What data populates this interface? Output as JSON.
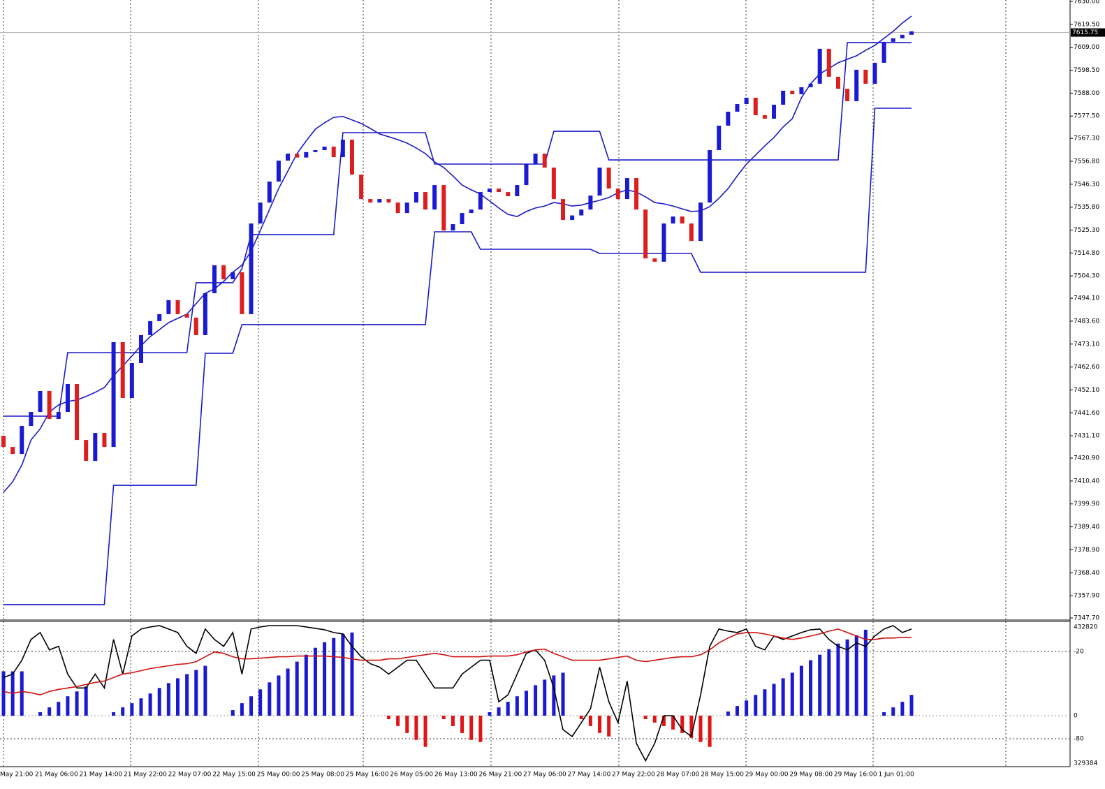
{
  "chart_data": {
    "type": "candlestick",
    "categories": [
      "May 21:00",
      "21 May 06:00",
      "21 May 14:00",
      "21 May 22:00",
      "22 May 07:00",
      "22 May 15:00",
      "25 May 00:00",
      "25 May 08:00",
      "25 May 16:00",
      "26 May 05:00",
      "26 May 13:00",
      "26 May 21:00",
      "27 May 06:00",
      "27 May 14:00",
      "27 May 22:00",
      "28 May 07:00",
      "28 May 15:00",
      "29 May 00:00",
      "29 May 08:00",
      "29 May 16:00",
      "1 Jun 01:00"
    ],
    "open": [
      7431.1,
      7426.0,
      7422.8,
      7435.6,
      7442.0,
      7451.6,
      7438.8,
      7442.0,
      7454.8,
      7429.2,
      7419.6,
      7432.4,
      7426.0,
      7474.0,
      7448.4,
      7464.4,
      7477.2,
      7483.6,
      7486.8,
      7493.2,
      7486.8,
      7485.2,
      7477.2,
      7496.4,
      7509.2,
      7502.8,
      7506.0,
      7486.8,
      7528.3,
      7537.9,
      7547.5,
      7557.1,
      7560.3,
      7558.5,
      7561.0,
      7561.9,
      7563.5,
      7558.7,
      7566.7,
      7550.7,
      7539.5,
      7537.9,
      7539.5,
      7537.9,
      7533.1,
      7537.9,
      7542.7,
      7534.7,
      7545.9,
      7525.1,
      7528.0,
      7533.1,
      7534.7,
      7542.7,
      7544.3,
      7542.7,
      7540.8,
      7545.9,
      7555.5,
      7560.3,
      7553.9,
      7539.5,
      7529.9,
      7532.0,
      7534.7,
      7541.1,
      7553.9,
      7544.3,
      7539.5,
      7549.1,
      7534.7,
      7512.3,
      7510.8,
      7528.3,
      7531.5,
      7528.3,
      7520.3,
      7537.9,
      7561.9,
      7573.1,
      7579.5,
      7583.0,
      7585.9,
      7577.9,
      7576.3,
      7582.7,
      7589.1,
      7587.5,
      7590.7,
      7592.3,
      7608.3,
      7595.5,
      7590.0,
      7584.3,
      7598.7,
      7592.3,
      7601.9,
      7611.5,
      7613.1,
      7614.7
    ],
    "close": [
      7426.0,
      7422.8,
      7435.6,
      7442.0,
      7451.6,
      7438.8,
      7442.0,
      7454.8,
      7429.2,
      7419.6,
      7432.4,
      7426.0,
      7474.0,
      7448.4,
      7464.4,
      7477.2,
      7483.6,
      7486.8,
      7493.2,
      7486.8,
      7485.2,
      7477.2,
      7496.4,
      7509.2,
      7502.8,
      7506.0,
      7486.8,
      7528.3,
      7537.9,
      7547.5,
      7557.1,
      7560.3,
      7558.5,
      7561.0,
      7561.9,
      7563.5,
      7558.7,
      7566.7,
      7550.7,
      7539.5,
      7537.9,
      7539.5,
      7537.9,
      7533.1,
      7537.9,
      7542.7,
      7534.7,
      7545.9,
      7525.1,
      7528.0,
      7533.1,
      7534.7,
      7542.7,
      7544.3,
      7542.7,
      7540.8,
      7545.9,
      7555.5,
      7560.3,
      7553.9,
      7539.5,
      7529.9,
      7532.0,
      7534.7,
      7541.1,
      7553.9,
      7544.3,
      7539.5,
      7549.1,
      7534.7,
      7512.3,
      7510.8,
      7528.3,
      7531.5,
      7528.3,
      7520.3,
      7537.9,
      7561.9,
      7573.1,
      7579.5,
      7583.0,
      7585.9,
      7577.9,
      7576.3,
      7582.7,
      7589.1,
      7587.5,
      7590.7,
      7592.3,
      7608.3,
      7595.5,
      7590.0,
      7584.3,
      7598.7,
      7592.3,
      7601.9,
      7611.5,
      7613.1,
      7614.7,
      7616.3
    ],
    "bull_color": "#1a1ad2",
    "bear_color": "#dc1e1e",
    "lines": [
      {
        "color": "#1a1ac8",
        "values": [
          7440.1,
          7440.1,
          7440.1,
          7440.1,
          7440.1,
          7440.1,
          7440.1,
          7469.2,
          7469.2,
          7469.2,
          7469.2,
          7469.2,
          7469.2,
          7469.2,
          7469.2,
          7469.2,
          7469.2,
          7469.2,
          7469.2,
          7469.2,
          7469.2,
          7501.2,
          7501.2,
          7501.2,
          7501.2,
          7501.2,
          7507.6,
          7523.2,
          7523.2,
          7523.2,
          7523.2,
          7523.2,
          7523.2,
          7523.2,
          7523.2,
          7523.2,
          7523.2,
          7569.9,
          7569.9,
          7569.9,
          7569.9,
          7569.9,
          7569.9,
          7569.9,
          7569.9,
          7569.9,
          7569.9,
          7555.5,
          7555.5,
          7555.5,
          7555.5,
          7555.5,
          7555.5,
          7555.5,
          7555.5,
          7555.5,
          7555.5,
          7555.5,
          7555.5,
          7555.5,
          7570.5,
          7570.5,
          7570.5,
          7570.5,
          7570.5,
          7570.5,
          7557.4,
          7557.4,
          7557.4,
          7557.4,
          7557.4,
          7557.4,
          7557.4,
          7557.4,
          7557.4,
          7557.4,
          7557.4,
          7557.4,
          7557.4,
          7557.4,
          7557.4,
          7557.4,
          7557.4,
          7557.4,
          7557.4,
          7557.4,
          7557.4,
          7557.4,
          7557.4,
          7557.4,
          7557.4,
          7557.4,
          7611.1,
          7611.1,
          7611.1,
          7611.1,
          7611.1,
          7611.1,
          7611.1,
          7611.1
        ]
      },
      {
        "color": "#1a1ac8",
        "values": [
          7353.8,
          7353.8,
          7353.8,
          7353.8,
          7353.8,
          7353.8,
          7353.8,
          7353.8,
          7353.8,
          7353.8,
          7353.8,
          7353.8,
          7408.4,
          7408.4,
          7408.4,
          7408.4,
          7408.4,
          7408.4,
          7408.4,
          7408.4,
          7408.4,
          7408.4,
          7468.9,
          7468.9,
          7468.9,
          7468.9,
          7482.0,
          7482.0,
          7482.0,
          7482.0,
          7482.0,
          7482.0,
          7482.0,
          7482.0,
          7482.0,
          7482.0,
          7482.0,
          7482.0,
          7482.0,
          7482.0,
          7482.0,
          7482.0,
          7482.0,
          7482.0,
          7482.0,
          7482.0,
          7482.0,
          7524.5,
          7524.5,
          7524.5,
          7524.5,
          7524.5,
          7516.5,
          7516.5,
          7516.5,
          7516.5,
          7516.5,
          7516.5,
          7516.5,
          7516.5,
          7516.5,
          7516.5,
          7516.5,
          7516.5,
          7516.5,
          7514.6,
          7514.6,
          7514.6,
          7514.6,
          7514.6,
          7514.6,
          7514.6,
          7514.6,
          7514.6,
          7514.6,
          7514.6,
          7506.0,
          7506.0,
          7506.0,
          7506.0,
          7506.0,
          7506.0,
          7506.0,
          7506.0,
          7506.0,
          7506.0,
          7506.0,
          7506.0,
          7506.0,
          7506.0,
          7506.0,
          7506.0,
          7506.0,
          7506.0,
          7506.0,
          7581.1,
          7581.1,
          7581.1,
          7581.1,
          7581.1
        ]
      },
      {
        "color": "#1a1ac8",
        "values": [
          7405.2,
          7410.0,
          7417.7,
          7429.2,
          7434.3,
          7442.0,
          7445.2,
          7446.8,
          7447.5,
          7449.1,
          7451.0,
          7453.2,
          7458.6,
          7463.1,
          7467.6,
          7472.4,
          7476.5,
          7479.7,
          7482.9,
          7484.9,
          7486.8,
          7491.6,
          7496.4,
          7498.3,
          7501.8,
          7506.0,
          7509.2,
          7515.6,
          7525.1,
          7534.7,
          7544.3,
          7552.3,
          7560.3,
          7566.1,
          7571.5,
          7574.4,
          7576.9,
          7577.3,
          7575.7,
          7574.1,
          7571.8,
          7569.3,
          7568.0,
          7566.7,
          7565.1,
          7562.9,
          7560.3,
          7556.5,
          7553.9,
          7550.1,
          7545.9,
          7543.7,
          7541.8,
          7538.6,
          7535.4,
          7532.5,
          7531.5,
          7533.8,
          7535.4,
          7536.3,
          7537.9,
          7537.3,
          7536.3,
          7536.7,
          7537.9,
          7538.9,
          7540.2,
          7542.4,
          7543.7,
          7542.7,
          7540.5,
          7537.9,
          7537.3,
          7536.3,
          7535.0,
          7533.8,
          7534.1,
          7536.0,
          7539.8,
          7544.3,
          7550.1,
          7555.5,
          7559.7,
          7563.8,
          7567.7,
          7572.5,
          7576.3,
          7585.9,
          7592.3,
          7596.8,
          7599.3,
          7601.9,
          7603.5,
          7605.1,
          7607.6,
          7609.9,
          7613.1,
          7616.3,
          7620.1,
          7623.3
        ]
      }
    ],
    "ylim": [
      7347.7,
      7630
    ],
    "yticks": [
      {
        "value": 7630,
        "label": "7630.00"
      },
      {
        "value": 7619.5,
        "label": "7619.50"
      },
      {
        "value": 7609,
        "label": "7609.00"
      },
      {
        "value": 7598.5,
        "label": "7598.50"
      },
      {
        "value": 7588,
        "label": "7588.00"
      },
      {
        "value": 7577.5,
        "label": "7577.50"
      },
      {
        "value": 7567.3,
        "label": "7567.30"
      },
      {
        "value": 7556.8,
        "label": "7556.80"
      },
      {
        "value": 7546.3,
        "label": "7546.30"
      },
      {
        "value": 7535.8,
        "label": "7535.80"
      },
      {
        "value": 7525.3,
        "label": "7525.30"
      },
      {
        "value": 7514.8,
        "label": "7514.80"
      },
      {
        "value": 7504.3,
        "label": "7504.30"
      },
      {
        "value": 7494.1,
        "label": "7494.10"
      },
      {
        "value": 7483.6,
        "label": "7483.60"
      },
      {
        "value": 7473.1,
        "label": "7473.10"
      },
      {
        "value": 7462.6,
        "label": "7462.60"
      },
      {
        "value": 7452.1,
        "label": "7452.10"
      },
      {
        "value": 7441.6,
        "label": "7441.60"
      },
      {
        "value": 7431.1,
        "label": "7431.10"
      },
      {
        "value": 7420.9,
        "label": "7420.90"
      },
      {
        "value": 7410.4,
        "label": "7410.40"
      },
      {
        "value": 7399.9,
        "label": "7399.90"
      },
      {
        "value": 7389.4,
        "label": "7389.40"
      },
      {
        "value": 7378.9,
        "label": "7378.90"
      },
      {
        "value": 7368.4,
        "label": "7368.40"
      },
      {
        "value": 7357.9,
        "label": "7357.90"
      },
      {
        "value": 7347.7,
        "label": "7347.70"
      }
    ],
    "current_price": {
      "value": 7615.75,
      "label": "7615.75"
    },
    "indicator": {
      "labels": [
        "432820",
        "-20",
        "0",
        "-80",
        "329384"
      ],
      "ylim": [
        -60,
        135
      ],
      "up_color": "#1a1ad2",
      "down_color": "#e01414",
      "histogram": [
        64,
        64,
        64,
        0,
        5,
        12,
        20,
        28,
        35,
        42,
        0,
        0,
        5,
        12,
        18,
        25,
        32,
        40,
        47,
        54,
        60,
        66,
        72,
        0,
        0,
        8,
        18,
        28,
        38,
        48,
        58,
        68,
        78,
        88,
        98,
        106,
        112,
        118,
        120,
        0,
        0,
        0,
        -5,
        -15,
        -25,
        -35,
        -45,
        0,
        -5,
        -15,
        -25,
        -35,
        -38,
        5,
        12,
        20,
        28,
        36,
        44,
        52,
        58,
        62,
        0,
        -5,
        -15,
        -25,
        -30,
        0,
        0,
        0,
        -5,
        -10,
        -15,
        -20,
        -25,
        -32,
        -38,
        -45,
        0,
        6,
        14,
        22,
        30,
        38,
        46,
        54,
        62,
        72,
        80,
        88,
        96,
        104,
        110,
        116,
        124,
        0,
        5,
        12,
        20,
        30
      ],
      "lines": [
        {
          "color": "#000000",
          "values": [
            55,
            60,
            80,
            110,
            120,
            95,
            100,
            60,
            40,
            40,
            60,
            40,
            110,
            60,
            115,
            125,
            128,
            130,
            125,
            120,
            100,
            90,
            125,
            110,
            100,
            120,
            60,
            125,
            128,
            130,
            130,
            130,
            130,
            128,
            126,
            124,
            120,
            118,
            100,
            85,
            75,
            70,
            60,
            70,
            80,
            80,
            60,
            40,
            40,
            40,
            60,
            70,
            80,
            80,
            20,
            30,
            60,
            90,
            95,
            80,
            40,
            -20,
            -30,
            -10,
            10,
            70,
            20,
            -10,
            50,
            -40,
            -65,
            -40,
            0,
            0,
            -20,
            -30,
            30,
            100,
            125,
            122,
            120,
            125,
            100,
            95,
            115,
            110,
            115,
            120,
            124,
            125,
            110,
            100,
            95,
            105,
            100,
            115,
            125,
            130,
            120,
            125
          ]
        },
        {
          "color": "#d01010",
          "values": [
            35,
            32,
            35,
            33,
            30,
            35,
            38,
            40,
            42,
            45,
            48,
            50,
            55,
            60,
            62,
            65,
            68,
            70,
            72,
            74,
            75,
            78,
            85,
            92,
            90,
            85,
            82,
            82,
            83,
            84,
            85,
            85,
            86,
            86,
            86,
            86,
            85,
            84,
            82,
            80,
            80,
            80,
            82,
            82,
            84,
            86,
            88,
            90,
            88,
            85,
            85,
            85,
            85,
            86,
            86,
            86,
            88,
            92,
            95,
            96,
            90,
            85,
            80,
            80,
            80,
            80,
            82,
            84,
            86,
            80,
            78,
            80,
            82,
            84,
            85,
            85,
            88,
            95,
            105,
            112,
            118,
            120,
            120,
            118,
            115,
            112,
            110,
            112,
            115,
            118,
            122,
            125,
            120,
            115,
            110,
            110,
            112,
            112,
            113,
            113
          ]
        }
      ]
    }
  }
}
